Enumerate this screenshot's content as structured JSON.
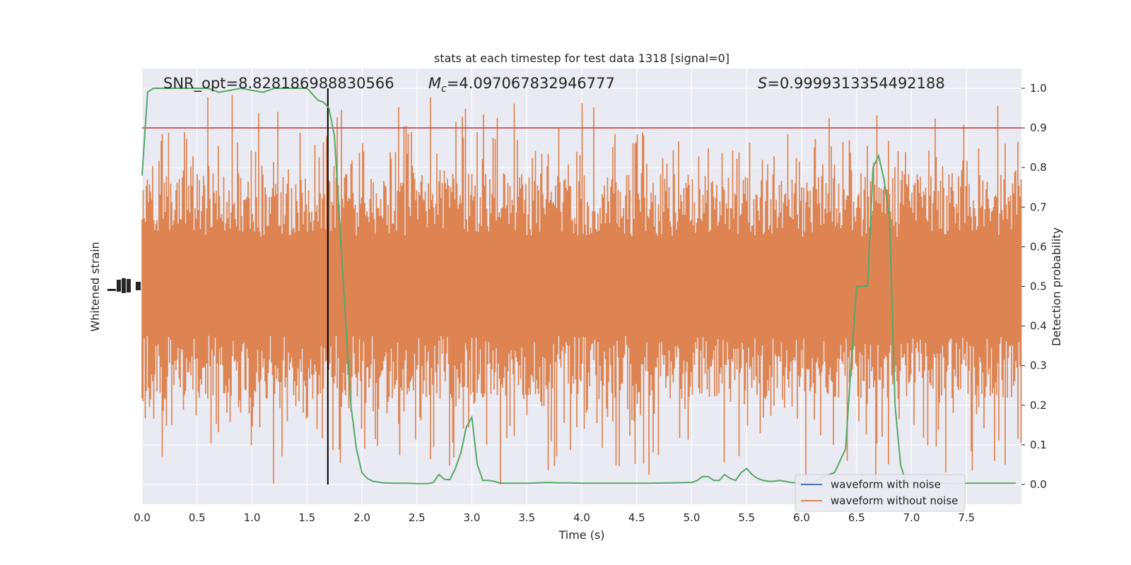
{
  "chart_data": {
    "type": "line",
    "title": "stats at each timestep for test data 1318 [signal=0]",
    "xlabel": "Time (s)",
    "ylabel_left": "Whitened strain",
    "ylabel_right": "Detection probability",
    "xlim": [
      0,
      8
    ],
    "ylim_right": [
      -0.05,
      1.05
    ],
    "x_ticks": [
      "0.0",
      "0.5",
      "1.0",
      "1.5",
      "2.0",
      "2.5",
      "3.0",
      "3.5",
      "4.0",
      "4.5",
      "5.0",
      "5.5",
      "6.0",
      "6.5",
      "7.0",
      "7.5"
    ],
    "y_ticks_right": [
      "0.0",
      "0.1",
      "0.2",
      "0.3",
      "0.4",
      "0.5",
      "0.6",
      "0.7",
      "0.8",
      "0.9",
      "1.0"
    ],
    "grid": true,
    "legend_position": "lower-right",
    "annotations": {
      "snr": "SNR_opt=8.828186988830566",
      "mc_symbol": "M",
      "mc_sub": "c",
      "mc_value": "=4.097067832946777",
      "s_symbol": "S",
      "s_value": "=0.9999313354492188"
    },
    "threshold": {
      "value": 0.9,
      "color": "#c44e52"
    },
    "marker_time": 1.69,
    "series": [
      {
        "name": "waveform with noise",
        "color": "#4c72b0"
      },
      {
        "name": "waveform without noise",
        "color": "#dd8452"
      },
      {
        "color": "#55a868",
        "x": [
          0.0,
          0.05,
          0.1,
          0.2,
          0.3,
          0.4,
          0.5,
          0.6,
          0.7,
          0.8,
          0.9,
          1.0,
          1.1,
          1.2,
          1.3,
          1.4,
          1.5,
          1.6,
          1.65,
          1.7,
          1.75,
          1.8,
          1.85,
          1.9,
          1.95,
          2.0,
          2.05,
          2.1,
          2.2,
          2.3,
          2.4,
          2.5,
          2.6,
          2.65,
          2.7,
          2.75,
          2.8,
          2.85,
          2.9,
          2.95,
          3.0,
          3.05,
          3.1,
          3.15,
          3.2,
          3.25,
          3.3,
          3.35,
          3.4,
          3.5,
          3.6,
          3.7,
          3.8,
          3.9,
          4.0,
          4.2,
          4.4,
          4.6,
          4.8,
          5.0,
          5.05,
          5.1,
          5.15,
          5.2,
          5.25,
          5.3,
          5.35,
          5.4,
          5.45,
          5.5,
          5.55,
          5.6,
          5.65,
          5.7,
          5.75,
          5.8,
          5.85,
          5.9,
          5.95,
          6.0,
          6.1,
          6.2,
          6.3,
          6.4,
          6.45,
          6.5,
          6.55,
          6.6,
          6.65,
          6.7,
          6.75,
          6.8,
          6.85,
          6.9,
          6.95,
          7.0,
          7.05,
          7.1,
          7.15,
          7.2,
          7.3,
          7.4,
          7.5,
          7.6,
          7.7,
          7.8,
          7.95
        ],
        "y": [
          0.78,
          0.99,
          1.0,
          1.0,
          1.0,
          1.0,
          1.0,
          1.0,
          0.99,
          0.995,
          1.0,
          0.995,
          0.99,
          1.0,
          1.0,
          1.0,
          1.0,
          0.97,
          0.965,
          0.95,
          0.88,
          0.65,
          0.42,
          0.2,
          0.09,
          0.03,
          0.015,
          0.008,
          0.004,
          0.003,
          0.003,
          0.002,
          0.002,
          0.005,
          0.025,
          0.013,
          0.012,
          0.04,
          0.08,
          0.145,
          0.17,
          0.05,
          0.01,
          0.01,
          0.008,
          0.004,
          0.003,
          0.003,
          0.003,
          0.003,
          0.004,
          0.005,
          0.004,
          0.004,
          0.003,
          0.003,
          0.003,
          0.003,
          0.004,
          0.005,
          0.01,
          0.02,
          0.02,
          0.01,
          0.01,
          0.025,
          0.015,
          0.01,
          0.03,
          0.04,
          0.025,
          0.015,
          0.01,
          0.008,
          0.008,
          0.01,
          0.008,
          0.005,
          0.004,
          0.003,
          0.003,
          0.02,
          0.03,
          0.09,
          0.3,
          0.5,
          0.5,
          0.5,
          0.8,
          0.83,
          0.77,
          0.67,
          0.2,
          0.05,
          0.005,
          0.003,
          0.003,
          0.004,
          0.005,
          0.004,
          0.003,
          0.002,
          0.003,
          0.003,
          0.003,
          0.003,
          0.003
        ]
      }
    ]
  }
}
